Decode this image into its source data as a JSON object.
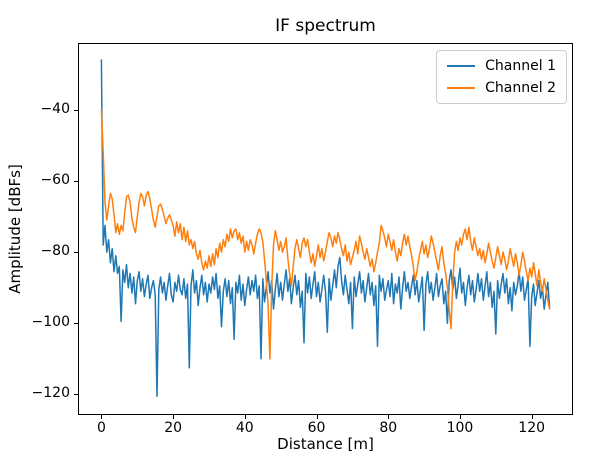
{
  "figure": {
    "background": "#ffffff",
    "text_color": "#000000"
  },
  "chart_data": {
    "type": "line",
    "title": "IF spectrum",
    "xlabel": "Distance [m]",
    "ylabel": "Amplitude [dBFs]",
    "xlim": [
      -6.25,
      131.25
    ],
    "ylim": [
      -125.5,
      -21.5
    ],
    "xticks": [
      0,
      20,
      40,
      60,
      80,
      100,
      120
    ],
    "yticks": [
      -40,
      -60,
      -80,
      -100,
      -120
    ],
    "grid": false,
    "legend": {
      "location": "upper right",
      "labels": [
        "Channel 1",
        "Channel 2"
      ]
    },
    "x": {
      "start": 0,
      "step": 0.5,
      "count": 251,
      "units": "m"
    },
    "series": [
      {
        "name": "Channel 1",
        "color": "#1f77b4",
        "values": [
          -26.0,
          -78.0,
          -72.5,
          -80.0,
          -76.5,
          -83.0,
          -79.0,
          -85.5,
          -81.0,
          -86.0,
          -84.0,
          -99.5,
          -85.0,
          -88.5,
          -83.5,
          -90.0,
          -86.0,
          -91.5,
          -87.0,
          -94.5,
          -88.0,
          -85.5,
          -91.0,
          -87.5,
          -92.5,
          -89.0,
          -86.5,
          -93.0,
          -90.0,
          -88.0,
          -92.0,
          -120.5,
          -90.5,
          -87.0,
          -91.5,
          -88.5,
          -93.5,
          -89.5,
          -86.0,
          -92.0,
          -94.0,
          -88.5,
          -91.0,
          -86.5,
          -90.5,
          -92.0,
          -87.5,
          -93.0,
          -89.0,
          -112.5,
          -89.5,
          -85.0,
          -91.5,
          -88.0,
          -95.0,
          -90.0,
          -86.5,
          -92.0,
          -88.5,
          -94.0,
          -89.0,
          -91.5,
          -87.0,
          -90.5,
          -86.0,
          -93.0,
          -89.5,
          -101.0,
          -91.0,
          -87.5,
          -92.5,
          -88.0,
          -94.5,
          -90.0,
          -104.5,
          -88.5,
          -91.5,
          -86.5,
          -93.5,
          -89.0,
          -95.0,
          -90.5,
          -87.0,
          -92.0,
          -88.0,
          -91.0,
          -86.5,
          -93.0,
          -89.5,
          -110.0,
          -87.5,
          -94.0,
          -90.0,
          -85.5,
          -91.5,
          -88.0,
          -96.0,
          -90.5,
          -86.0,
          -92.5,
          -88.5,
          -93.5,
          -89.0,
          -85.0,
          -91.0,
          -87.5,
          -94.5,
          -90.0,
          -86.5,
          -92.0,
          -88.0,
          -95.5,
          -91.0,
          -105.5,
          -86.0,
          -91.5,
          -87.0,
          -93.0,
          -89.0,
          -85.5,
          -92.5,
          -88.5,
          -94.0,
          -90.5,
          -86.5,
          -91.0,
          -102.5,
          -87.5,
          -93.5,
          -89.5,
          -85.0,
          -90.0,
          -84.0,
          -81.5,
          -88.0,
          -92.0,
          -86.5,
          -90.5,
          -94.5,
          -88.5,
          -101.5,
          -87.0,
          -92.5,
          -89.0,
          -85.5,
          -91.5,
          -88.0,
          -94.0,
          -90.0,
          -86.0,
          -92.0,
          -88.5,
          -95.0,
          -89.5,
          -106.5,
          -86.5,
          -91.0,
          -87.5,
          -93.5,
          -90.5,
          -88.0,
          -92.5,
          -86.0,
          -94.5,
          -89.0,
          -91.5,
          -87.0,
          -96.0,
          -90.0,
          -85.5,
          -91.0,
          -88.5,
          -93.0,
          -89.5,
          -86.5,
          -92.0,
          -88.0,
          -94.0,
          -90.5,
          -87.0,
          -102.0,
          -89.0,
          -85.5,
          -91.5,
          -88.5,
          -93.5,
          -90.0,
          -86.0,
          -92.5,
          -89.5,
          -87.5,
          -94.5,
          -91.0,
          -100.0,
          -88.0,
          -85.0,
          -90.5,
          -87.0,
          -93.0,
          -89.0,
          -84.5,
          -91.5,
          -88.5,
          -95.0,
          -90.0,
          -86.5,
          -92.0,
          -88.0,
          -94.0,
          -90.5,
          -86.0,
          -91.0,
          -87.5,
          -93.5,
          -89.5,
          -85.5,
          -92.5,
          -88.5,
          -95.5,
          -91.0,
          -103.0,
          -88.0,
          -93.0,
          -89.0,
          -86.0,
          -91.5,
          -87.5,
          -94.5,
          -90.0,
          -96.5,
          -88.5,
          -92.0,
          -89.5,
          -85.5,
          -91.0,
          -87.0,
          -93.5,
          -90.5,
          -87.5,
          -106.5,
          -92.5,
          -89.0,
          -95.0,
          -91.5,
          -88.0,
          -93.0,
          -90.0,
          -96.0,
          -92.0,
          -88.5,
          -95.5
        ]
      },
      {
        "name": "Channel 2",
        "color": "#ff7f0e",
        "values": [
          -40.0,
          -52.0,
          -66.0,
          -71.0,
          -67.0,
          -63.5,
          -65.0,
          -69.5,
          -74.5,
          -72.0,
          -75.0,
          -72.5,
          -74.0,
          -69.0,
          -64.5,
          -64.0,
          -66.0,
          -70.5,
          -73.0,
          -74.5,
          -70.0,
          -66.0,
          -63.5,
          -64.5,
          -67.0,
          -64.0,
          -63.0,
          -65.0,
          -68.0,
          -71.0,
          -73.0,
          -70.0,
          -67.0,
          -66.5,
          -68.0,
          -70.0,
          -72.0,
          -70.5,
          -69.5,
          -71.0,
          -72.5,
          -75.5,
          -71.5,
          -74.5,
          -72.0,
          -76.5,
          -73.0,
          -77.0,
          -74.0,
          -78.0,
          -76.5,
          -79.0,
          -77.0,
          -80.5,
          -82.0,
          -79.5,
          -83.0,
          -85.0,
          -82.5,
          -84.5,
          -81.0,
          -84.0,
          -80.5,
          -83.5,
          -79.0,
          -81.5,
          -77.5,
          -80.0,
          -76.5,
          -78.5,
          -75.0,
          -77.0,
          -73.5,
          -76.0,
          -74.0,
          -73.5,
          -76.5,
          -74.5,
          -77.5,
          -75.5,
          -80.0,
          -77.0,
          -79.5,
          -76.5,
          -78.0,
          -80.5,
          -77.5,
          -75.0,
          -73.5,
          -74.5,
          -77.0,
          -82.0,
          -88.0,
          -95.0,
          -110.0,
          -90.0,
          -78.0,
          -74.0,
          -76.5,
          -79.5,
          -77.0,
          -80.0,
          -78.5,
          -76.0,
          -82.0,
          -86.0,
          -89.5,
          -84.0,
          -79.0,
          -76.5,
          -79.0,
          -81.5,
          -77.5,
          -76.0,
          -78.5,
          -76.5,
          -80.0,
          -83.0,
          -80.5,
          -84.0,
          -81.0,
          -78.0,
          -81.5,
          -79.0,
          -82.5,
          -80.0,
          -77.0,
          -74.5,
          -76.0,
          -78.5,
          -75.5,
          -77.5,
          -74.5,
          -76.5,
          -79.0,
          -81.0,
          -78.0,
          -82.5,
          -80.0,
          -83.5,
          -81.5,
          -79.5,
          -77.0,
          -80.5,
          -75.5,
          -77.5,
          -80.0,
          -82.0,
          -79.0,
          -81.5,
          -84.0,
          -82.0,
          -85.5,
          -83.0,
          -80.0,
          -77.5,
          -72.5,
          -74.0,
          -76.0,
          -78.5,
          -75.0,
          -77.0,
          -79.5,
          -76.5,
          -80.0,
          -82.5,
          -79.0,
          -81.0,
          -77.5,
          -75.0,
          -78.0,
          -75.5,
          -78.5,
          -81.0,
          -84.0,
          -88.0,
          -85.5,
          -82.0,
          -79.5,
          -77.0,
          -80.5,
          -78.0,
          -81.5,
          -79.0,
          -75.5,
          -77.5,
          -80.0,
          -82.5,
          -85.0,
          -81.0,
          -78.5,
          -83.0,
          -86.0,
          -90.0,
          -96.0,
          -101.5,
          -88.5,
          -80.0,
          -77.0,
          -79.5,
          -76.0,
          -78.0,
          -75.0,
          -73.5,
          -76.5,
          -73.0,
          -77.0,
          -79.5,
          -76.0,
          -78.5,
          -81.0,
          -79.0,
          -82.0,
          -79.5,
          -83.0,
          -80.5,
          -77.5,
          -80.0,
          -82.5,
          -84.5,
          -81.5,
          -78.5,
          -81.0,
          -83.5,
          -80.0,
          -82.0,
          -85.0,
          -82.5,
          -79.0,
          -81.5,
          -84.0,
          -80.5,
          -83.0,
          -86.5,
          -83.5,
          -80.0,
          -82.5,
          -85.5,
          -88.0,
          -84.5,
          -87.0,
          -83.0,
          -86.0,
          -89.5,
          -85.0,
          -88.5,
          -91.0,
          -87.5,
          -90.5,
          -93.5,
          -96.0
        ]
      }
    ]
  }
}
